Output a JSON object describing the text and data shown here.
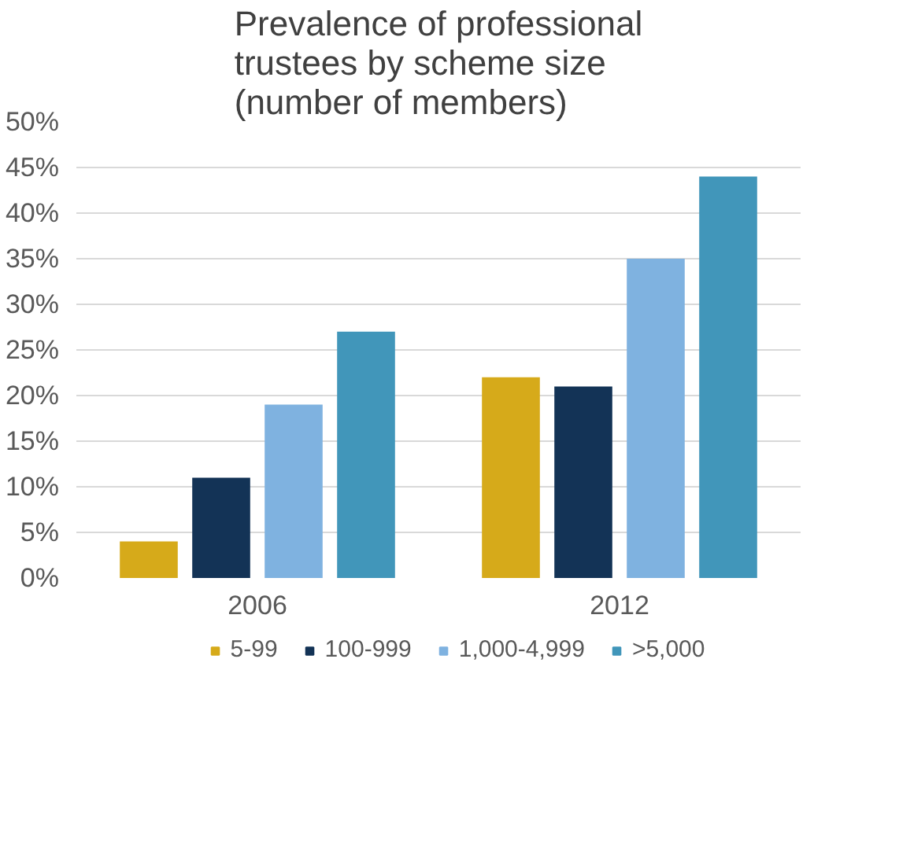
{
  "chart_data": {
    "type": "bar",
    "title": "Prevalence of professional trustees by scheme size (number of members)",
    "categories": [
      "2006",
      "2012"
    ],
    "series": [
      {
        "name": "5-99",
        "color": "#d6aa1a",
        "values": [
          4,
          22
        ]
      },
      {
        "name": "100-999",
        "color": "#133356",
        "values": [
          11,
          21
        ]
      },
      {
        "name": "1,000-4,999",
        "color": "#7fb2e0",
        "values": [
          19,
          35
        ]
      },
      {
        "name": ">5,000",
        "color": "#4196ba",
        "values": [
          27,
          44
        ]
      }
    ],
    "ylim": [
      0,
      50
    ],
    "yticks": [
      {
        "value": 0,
        "label": "0%"
      },
      {
        "value": 5,
        "label": "5%"
      },
      {
        "value": 10,
        "label": "10%"
      },
      {
        "value": 15,
        "label": "15%"
      },
      {
        "value": 20,
        "label": "20%"
      },
      {
        "value": 25,
        "label": "25%"
      },
      {
        "value": 30,
        "label": "30%"
      },
      {
        "value": 35,
        "label": "35%"
      },
      {
        "value": 40,
        "label": "40%"
      },
      {
        "value": 45,
        "label": "45%"
      },
      {
        "value": 50,
        "label": "50%"
      }
    ],
    "grid": "y",
    "legend": "bottom"
  }
}
